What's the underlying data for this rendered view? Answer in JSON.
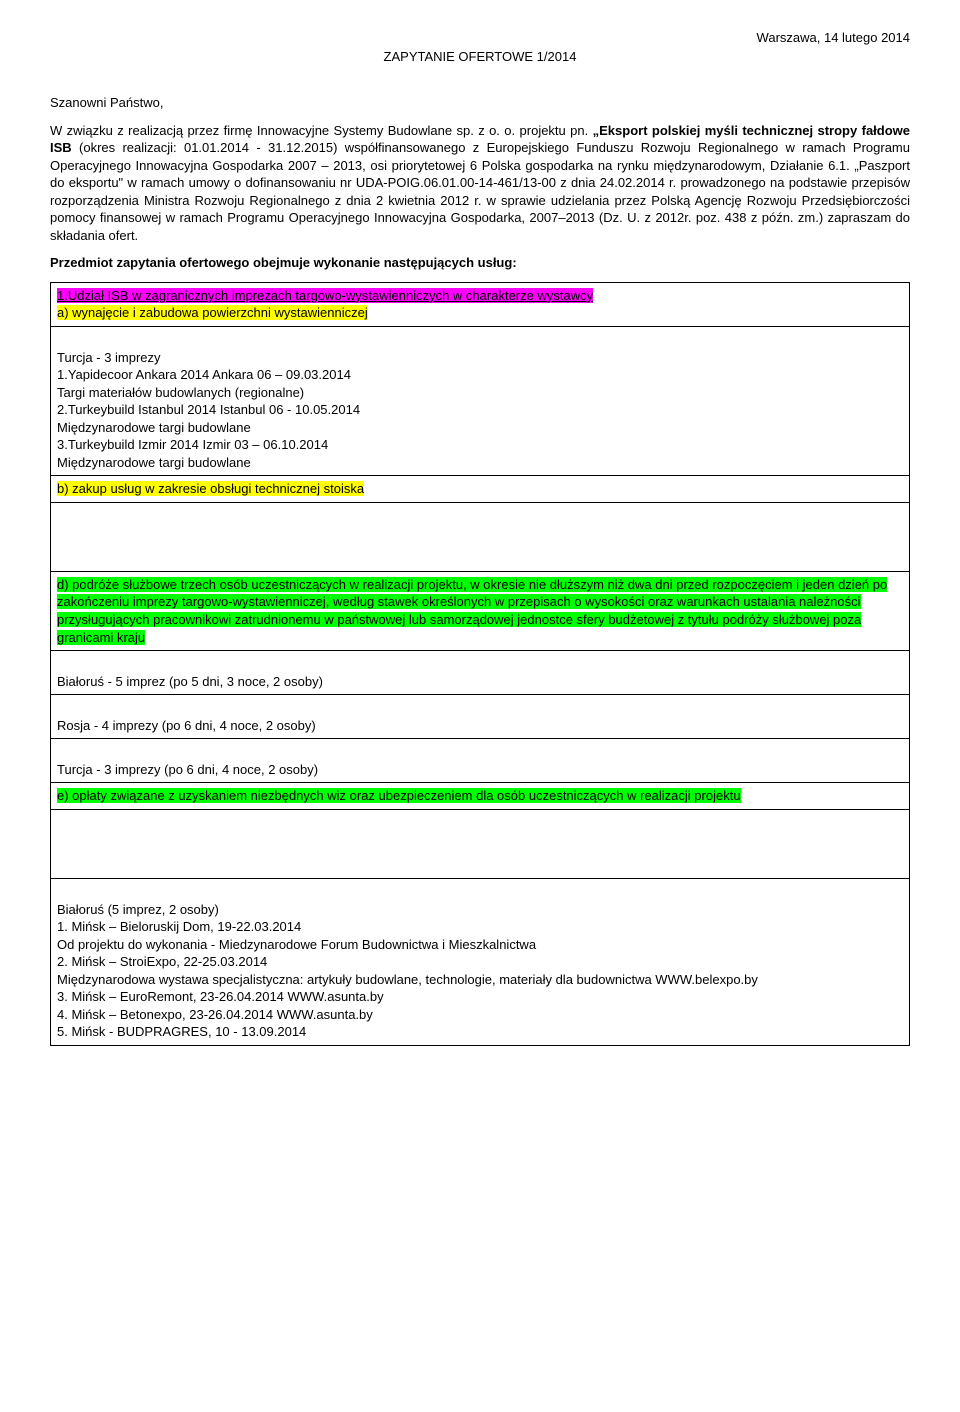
{
  "header": {
    "date_location": "Warszawa, 14 lutego 2014",
    "title": "ZAPYTANIE OFERTOWE 1/2014"
  },
  "intro": {
    "salutation": "Szanowni Państwo,",
    "body_part1": "W związku z realizacją przez firmę Innowacyjne Systemy Budowlane sp. z o. o. projektu pn. ",
    "body_bold": "„Eksport polskiej myśli technicznej stropy fałdowe ISB",
    "body_part2": " (okres realizacji: 01.01.2014 - 31.12.2015) współfinansowanego z Europejskiego Funduszu Rozwoju Regionalnego w ramach Programu Operacyjnego Innowacyjna Gospodarka 2007 – 2013, osi priorytetowej 6 Polska gospodarka na rynku międzynarodowym, Działanie 6.1. „Paszport do eksportu\" w ramach umowy o dofinansowaniu nr UDA-POIG.06.01.00-14-461/13-00 z dnia 24.02.2014 r. prowadzonego na podstawie przepisów rozporządzenia Ministra Rozwoju Regionalnego z dnia 2 kwietnia 2012 r. w sprawie udzielania przez Polską Agencję Rozwoju Przedsiębiorczości pomocy finansowej w ramach Programu Operacyjnego Innowacyjna Gospodarka, 2007–2013 (Dz. U. z 2012r. poz. 438 z późn. zm.) zapraszam do składania ofert.",
    "subject_heading": "Przedmiot zapytania ofertowego obejmuje wykonanie następujących usług:"
  },
  "rows": {
    "r1_title": "1.Udział ISB w zagranicznych imprezach targowo-wystawienniczych w charakterze wystawcy",
    "r1_sub_a": "a) wynajęcie i zabudowa powierzchni wystawienniczej",
    "r2_l1": "Turcja - 3 imprezy",
    "r2_l2": "1.Yapidecoor Ankara 2014 Ankara 06 – 09.03.2014",
    "r2_l3": "Targi materiałów budowlanych (regionalne)",
    "r2_l4": "2.Turkeybuild Istanbul 2014 Istanbul 06 - 10.05.2014",
    "r2_l5": "Międzynarodowe targi budowlane",
    "r2_l6": "3.Turkeybuild Izmir 2014 Izmir 03 – 06.10.2014",
    "r2_l7": "Międzynarodowe targi budowlane",
    "r3_b": "b) zakup usług w zakresie obsługi technicznej stoiska",
    "r5_d": "d) podróże służbowe trzech osób uczestniczących w realizacji projektu, w okresie nie dłuższym niż dwa dni przed rozpoczęciem i jeden dzień po zakończeniu imprezy targowo-wystawienniczej, według stawek określonych w przepisach o wysokości oraz warunkach ustalania należności przysługujących pracownikowi zatrudnionemu w państwowej lub samorządowej jednostce sfery budżetowej z tytułu podróży służbowej poza granicami kraju",
    "r6": "Białoruś - 5 imprez (po 5 dni, 3 noce, 2 osoby)",
    "r7": "Rosja - 4 imprezy (po 6 dni, 4 noce, 2 osoby)",
    "r8": "Turcja - 3 imprezy (po 6 dni, 4 noce, 2 osoby)",
    "r9_e": "e) opłaty związane z uzyskaniem niezbędnych wiz oraz ubezpieczeniem dla osób uczestniczących w realizacji projektu",
    "r11_l1": "Białoruś (5 imprez, 2 osoby)",
    "r11_l2": "1. Mińsk – Bieloruskij Dom, 19-22.03.2014",
    "r11_l3": "Od projektu do wykonania - Miedzynarodowe Forum Budownictwa i Mieszkalnictwa",
    "r11_l4": "2. Mińsk – StroiExpo, 22-25.03.2014",
    "r11_l5": "Międzynarodowa wystawa specjalistyczna: artykuły budowlane, technologie, materiały dla budownictwa WWW.belexpo.by",
    "r11_l6": "3. Mińsk – EuroRemont, 23-26.04.2014 WWW.asunta.by",
    "r11_l7": "4. Mińsk – Betonexpo, 23-26.04.2014 WWW.asunta.by",
    "r11_l8": "5. Mińsk - BUDPRAGRES, 10 - 13.09.2014"
  },
  "colors": {
    "pink": "#ff00ff",
    "yellow": "#ffff00",
    "green": "#00ff00",
    "text": "#000000",
    "background": "#ffffff",
    "border": "#000000"
  }
}
